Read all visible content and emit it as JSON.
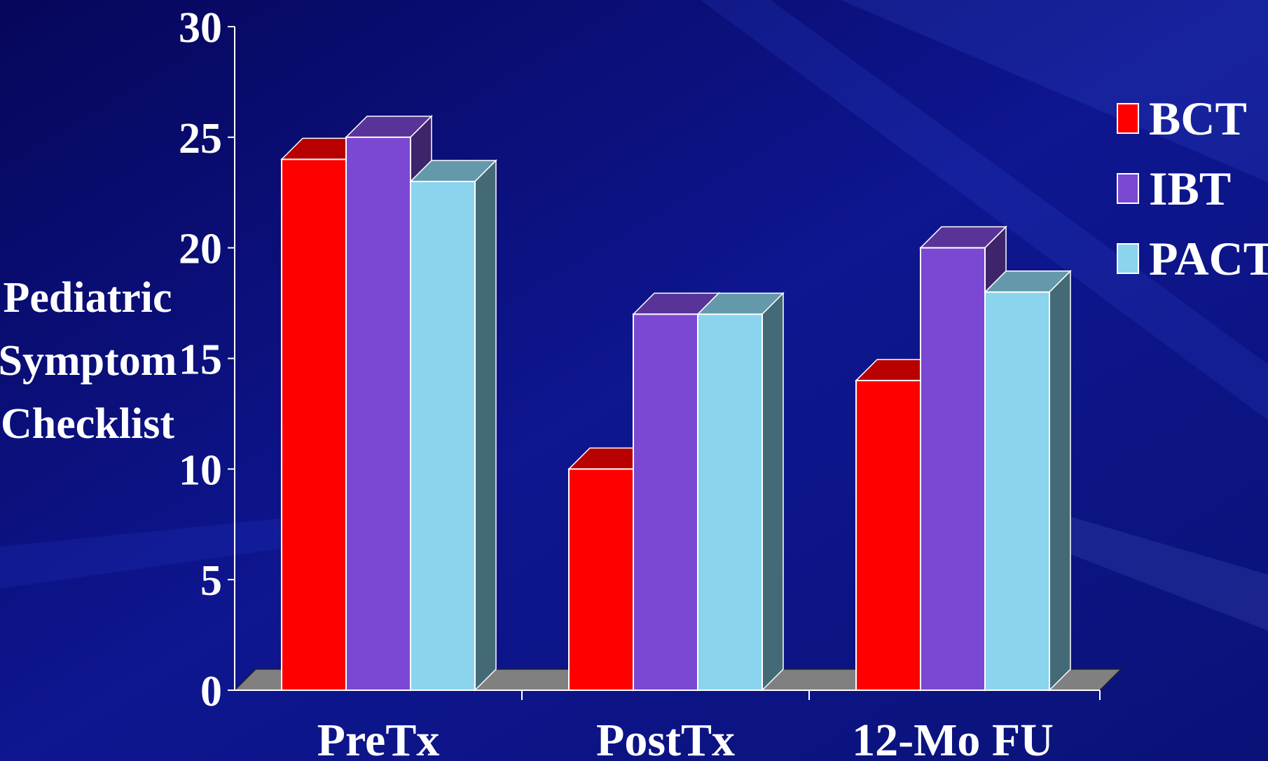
{
  "chart_data": {
    "type": "bar",
    "title": "",
    "xlabel": "",
    "ylabel_lines": [
      "Pediatric",
      "Symptom",
      "Checklist"
    ],
    "categories": [
      "PreTx",
      "PostTx",
      "12-Mo FU"
    ],
    "series": [
      {
        "name": "BCT",
        "values": [
          24,
          10,
          14
        ],
        "color": "#ff0000"
      },
      {
        "name": "IBT",
        "values": [
          25,
          17,
          20
        ],
        "color": "#7b48d3"
      },
      {
        "name": "PACT",
        "values": [
          23,
          17,
          18
        ],
        "color": "#8ad4ee"
      }
    ],
    "yticks": [
      "0",
      "5",
      "10",
      "15",
      "20",
      "25",
      "30"
    ],
    "ylim": [
      0,
      30
    ],
    "style": "3d",
    "grid": false,
    "legend_position": "right"
  },
  "colors": {
    "background": "#0a0a6e",
    "axis": "#ffffff",
    "floor": "#808080"
  }
}
